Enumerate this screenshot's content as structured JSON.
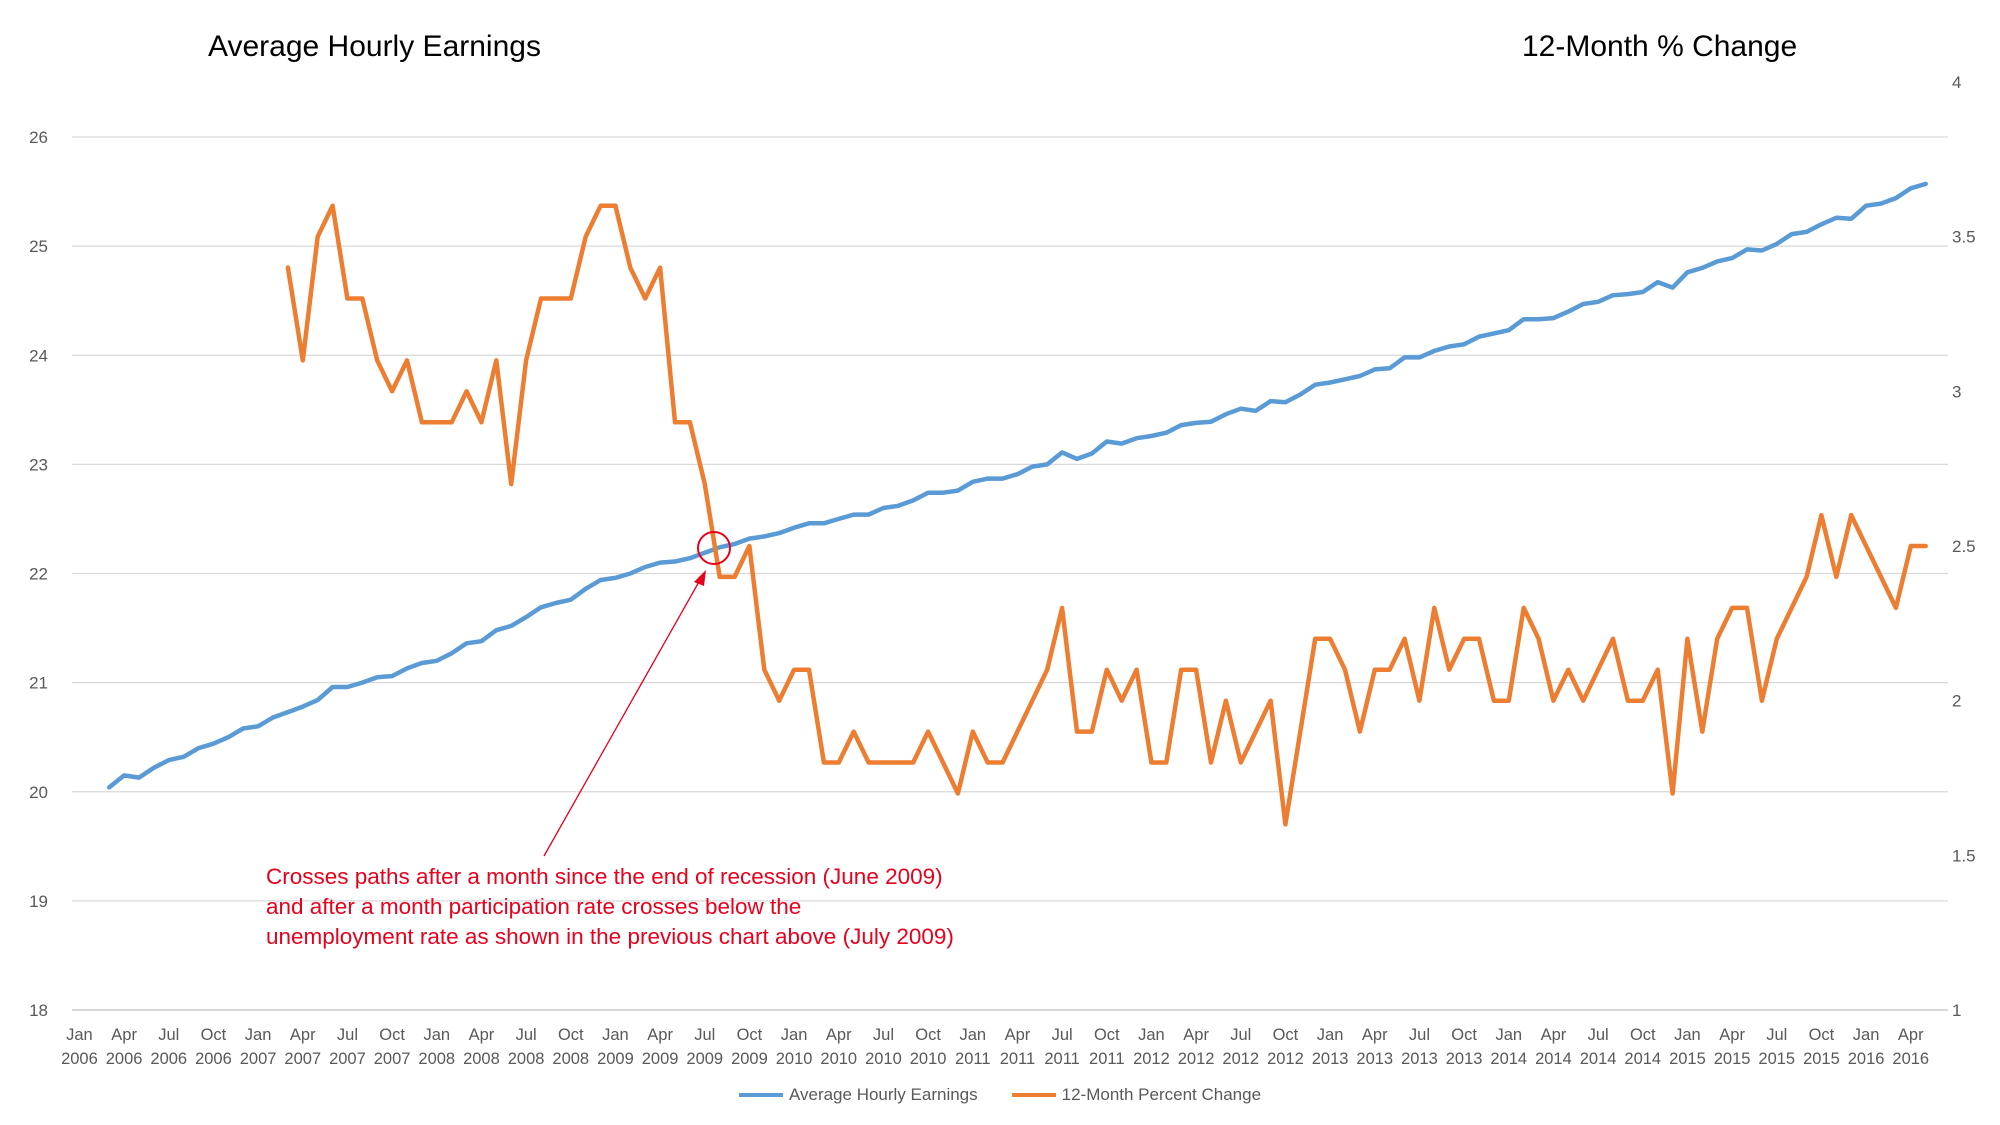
{
  "titles": {
    "left": "Average Hourly Earnings",
    "right": "12-Month % Change"
  },
  "annotation": {
    "lines": [
      "Crosses paths after a month since the end of recession (June 2009)",
      "and after a month participation rate crosses below the",
      "unemployment rate as shown in the previous chart above (July 2009)"
    ],
    "color": "#e8001c"
  },
  "chart_data": {
    "type": "line",
    "x_labels": [
      [
        "Jan",
        "2006"
      ],
      [
        "Apr",
        "2006"
      ],
      [
        "Jul",
        "2006"
      ],
      [
        "Oct",
        "2006"
      ],
      [
        "Jan",
        "2007"
      ],
      [
        "Apr",
        "2007"
      ],
      [
        "Jul",
        "2007"
      ],
      [
        "Oct",
        "2007"
      ],
      [
        "Jan",
        "2008"
      ],
      [
        "Apr",
        "2008"
      ],
      [
        "Jul",
        "2008"
      ],
      [
        "Oct",
        "2008"
      ],
      [
        "Jan",
        "2009"
      ],
      [
        "Apr",
        "2009"
      ],
      [
        "Jul",
        "2009"
      ],
      [
        "Oct",
        "2009"
      ],
      [
        "Jan",
        "2010"
      ],
      [
        "Apr",
        "2010"
      ],
      [
        "Jul",
        "2010"
      ],
      [
        "Oct",
        "2010"
      ],
      [
        "Jan",
        "2011"
      ],
      [
        "Apr",
        "2011"
      ],
      [
        "Jul",
        "2011"
      ],
      [
        "Oct",
        "2011"
      ],
      [
        "Jan",
        "2012"
      ],
      [
        "Apr",
        "2012"
      ],
      [
        "Jul",
        "2012"
      ],
      [
        "Oct",
        "2012"
      ],
      [
        "Jan",
        "2013"
      ],
      [
        "Apr",
        "2013"
      ],
      [
        "Jul",
        "2013"
      ],
      [
        "Oct",
        "2013"
      ],
      [
        "Jan",
        "2014"
      ],
      [
        "Apr",
        "2014"
      ],
      [
        "Jul",
        "2014"
      ],
      [
        "Oct",
        "2014"
      ],
      [
        "Jan",
        "2015"
      ],
      [
        "Apr",
        "2015"
      ],
      [
        "Jul",
        "2015"
      ],
      [
        "Oct",
        "2015"
      ],
      [
        "Jan",
        "2016"
      ],
      [
        "Apr",
        "2016"
      ]
    ],
    "y_left": {
      "min": 18,
      "max": 26,
      "ticks": [
        18,
        19,
        20,
        21,
        22,
        23,
        24,
        25,
        26
      ]
    },
    "y_right": {
      "min": 1,
      "max": 4,
      "ticks": [
        "1",
        "1.5",
        "2",
        "2.5",
        "3",
        "3.5",
        "4"
      ]
    },
    "legend_position": "bottom",
    "grid": true,
    "series": [
      {
        "name": "Average Hourly Earnings",
        "axis": "left",
        "color": "#5b9bd5",
        "start_index": 2,
        "values": [
          20.04,
          20.15,
          20.13,
          20.22,
          20.29,
          20.32,
          20.4,
          20.44,
          20.5,
          20.58,
          20.6,
          20.68,
          20.73,
          20.78,
          20.84,
          20.96,
          20.96,
          21.0,
          21.05,
          21.06,
          21.13,
          21.18,
          21.2,
          21.27,
          21.36,
          21.38,
          21.48,
          21.52,
          21.6,
          21.69,
          21.73,
          21.76,
          21.86,
          21.94,
          21.96,
          22.0,
          22.06,
          22.1,
          22.11,
          22.14,
          22.19,
          22.24,
          22.27,
          22.32,
          22.34,
          22.37,
          22.42,
          22.46,
          22.46,
          22.5,
          22.54,
          22.54,
          22.6,
          22.62,
          22.67,
          22.74,
          22.74,
          22.76,
          22.84,
          22.87,
          22.87,
          22.91,
          22.98,
          23.0,
          23.11,
          23.05,
          23.1,
          23.21,
          23.19,
          23.24,
          23.26,
          23.29,
          23.36,
          23.38,
          23.39,
          23.46,
          23.51,
          23.49,
          23.58,
          23.57,
          23.64,
          23.73,
          23.75,
          23.78,
          23.81,
          23.87,
          23.88,
          23.98,
          23.98,
          24.04,
          24.08,
          24.1,
          24.17,
          24.2,
          24.23,
          24.33,
          24.33,
          24.34,
          24.4,
          24.47,
          24.49,
          24.55,
          24.56,
          24.58,
          24.67,
          24.62,
          24.76,
          24.8,
          24.86,
          24.89,
          24.97,
          24.96,
          25.02,
          25.11,
          25.13,
          25.2,
          25.26,
          25.25,
          25.37,
          25.39,
          25.44,
          25.53,
          25.57
        ]
      },
      {
        "name": "12-Month Percent Change",
        "axis": "right",
        "color": "#ed7d31",
        "start_index": 14,
        "values": [
          3.4,
          3.1,
          3.5,
          3.6,
          3.3,
          3.3,
          3.1,
          3.0,
          3.1,
          2.9,
          2.9,
          2.9,
          3.0,
          2.9,
          3.1,
          2.7,
          3.1,
          3.3,
          3.3,
          3.3,
          3.5,
          3.6,
          3.6,
          3.4,
          3.3,
          3.4,
          2.9,
          2.9,
          2.7,
          2.4,
          2.4,
          2.5,
          2.1,
          2.0,
          2.1,
          2.1,
          1.8,
          1.8,
          1.9,
          1.8,
          1.8,
          1.8,
          1.8,
          1.9,
          1.8,
          1.7,
          1.9,
          1.8,
          1.8,
          1.9,
          2.0,
          2.1,
          2.3,
          1.9,
          1.9,
          2.1,
          2.0,
          2.1,
          1.8,
          1.8,
          2.1,
          2.1,
          1.8,
          2.0,
          1.8,
          1.9,
          2.0,
          1.6,
          1.9,
          2.2,
          2.2,
          2.1,
          1.9,
          2.1,
          2.1,
          2.2,
          2.0,
          2.3,
          2.1,
          2.2,
          2.2,
          2.0,
          2.0,
          2.3,
          2.2,
          2.0,
          2.1,
          2.0,
          2.1,
          2.2,
          2.0,
          2.0,
          2.1,
          1.7,
          2.2,
          1.9,
          2.2,
          2.3,
          2.3,
          2.0,
          2.2,
          2.3,
          2.4,
          2.6,
          2.4,
          2.6,
          2.5,
          2.4,
          2.3,
          2.5,
          2.5
        ]
      }
    ]
  }
}
